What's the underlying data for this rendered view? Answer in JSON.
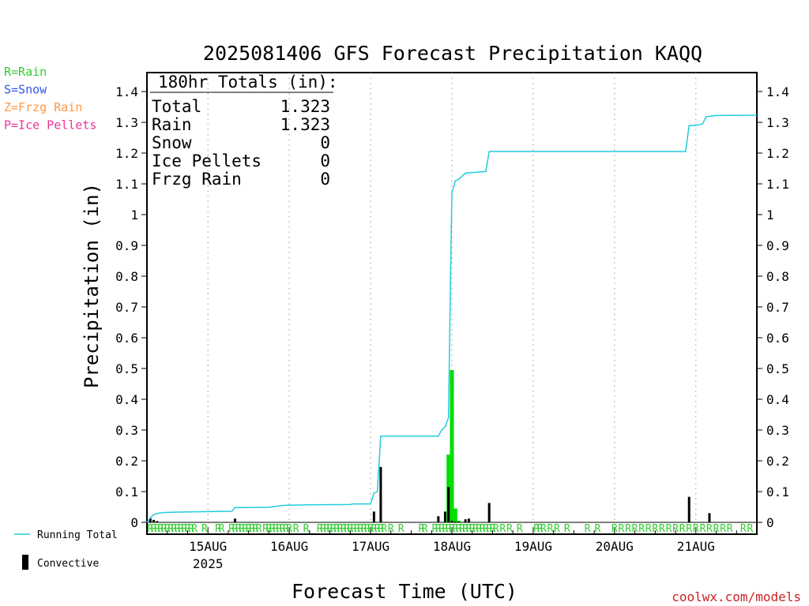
{
  "chart_data": {
    "type": "bar",
    "title": "2025081406 GFS Forecast Precipitation KAQQ",
    "ylabel": "Precipitation (in)",
    "xlabel": "Forecast Time (UTC)",
    "ylim": [
      0,
      1.45
    ],
    "yticks": [
      0,
      0.1,
      0.2,
      0.3,
      0.4,
      0.5,
      0.6,
      0.7,
      0.8,
      0.9,
      1,
      1.1,
      1.2,
      1.3,
      1.4
    ],
    "x_unit": "hours since 2025-08-14 06 UTC",
    "xlim": [
      0,
      180
    ],
    "xticks": [
      {
        "x": 18,
        "label": "15AUG",
        "sub": "2025"
      },
      {
        "x": 42,
        "label": "16AUG",
        "sub": ""
      },
      {
        "x": 66,
        "label": "17AUG",
        "sub": ""
      },
      {
        "x": 90,
        "label": "18AUG",
        "sub": ""
      },
      {
        "x": 114,
        "label": "19AUG",
        "sub": ""
      },
      {
        "x": 138,
        "label": "20AUG",
        "sub": ""
      },
      {
        "x": 162,
        "label": "21AUG",
        "sub": ""
      }
    ],
    "grid": "vertical dotted at day boundaries",
    "precip_type_legend": [
      {
        "text": "R=Rain",
        "color": "#33cc33"
      },
      {
        "text": "S=Snow",
        "color": "#3355ee"
      },
      {
        "text": "Z=Frzg Rain",
        "color": "#ff9944"
      },
      {
        "text": "P=Ice Pellets",
        "color": "#ee3399"
      }
    ],
    "series_legend": {
      "running_total": "Running Total",
      "convective": "Convective"
    },
    "totals": {
      "header": "180hr Totals (in):",
      "rows": [
        {
          "label": "Total",
          "value": "1.323"
        },
        {
          "label": "Rain",
          "value": "1.323"
        },
        {
          "label": "Snow",
          "value": "0"
        },
        {
          "label": "Ice Pellets",
          "value": "0"
        },
        {
          "label": "Frzg Rain",
          "value": "0"
        }
      ]
    },
    "running_total": [
      [
        0,
        0
      ],
      [
        1,
        0.015
      ],
      [
        2,
        0.025
      ],
      [
        3,
        0.029
      ],
      [
        5,
        0.032
      ],
      [
        8,
        0.033
      ],
      [
        12,
        0.034
      ],
      [
        18,
        0.035
      ],
      [
        25,
        0.036
      ],
      [
        26,
        0.048
      ],
      [
        30,
        0.048
      ],
      [
        36,
        0.049
      ],
      [
        38,
        0.052
      ],
      [
        40,
        0.055
      ],
      [
        42,
        0.056
      ],
      [
        48,
        0.057
      ],
      [
        60,
        0.058
      ],
      [
        61,
        0.06
      ],
      [
        66,
        0.06
      ],
      [
        67,
        0.095
      ],
      [
        68,
        0.1
      ],
      [
        69,
        0.28
      ],
      [
        78,
        0.28
      ],
      [
        86,
        0.28
      ],
      [
        87,
        0.3
      ],
      [
        88,
        0.31
      ],
      [
        89,
        0.34
      ],
      [
        89.3,
        0.57
      ],
      [
        89.6,
        0.8
      ],
      [
        90,
        1.07
      ],
      [
        91,
        1.11
      ],
      [
        92,
        1.115
      ],
      [
        93,
        1.125
      ],
      [
        94,
        1.135
      ],
      [
        96,
        1.137
      ],
      [
        100,
        1.14
      ],
      [
        101,
        1.205
      ],
      [
        120,
        1.205
      ],
      [
        140,
        1.205
      ],
      [
        159,
        1.205
      ],
      [
        160,
        1.29
      ],
      [
        162,
        1.29
      ],
      [
        164,
        1.295
      ],
      [
        165,
        1.318
      ],
      [
        168,
        1.322
      ],
      [
        180,
        1.323
      ]
    ],
    "bars": [
      {
        "x": 1,
        "total": 0.013,
        "convective": 0.013
      },
      {
        "x": 2,
        "total": 0.008,
        "convective": 0.008
      },
      {
        "x": 3,
        "total": 0.004,
        "convective": 0.004
      },
      {
        "x": 26,
        "total": 0.012,
        "convective": 0.012
      },
      {
        "x": 67,
        "total": 0.035,
        "convective": 0.035
      },
      {
        "x": 69,
        "total": 0.18,
        "convective": 0.18
      },
      {
        "x": 86,
        "total": 0.02,
        "convective": 0.02
      },
      {
        "x": 88,
        "total": 0.035,
        "convective": 0.035
      },
      {
        "x": 89,
        "total": 0.22,
        "convective": 0.115
      },
      {
        "x": 90,
        "total": 0.495,
        "convective": 0.005
      },
      {
        "x": 91,
        "total": 0.045,
        "convective": 0.003
      },
      {
        "x": 92,
        "total": 0.005,
        "convective": 0.002
      },
      {
        "x": 94,
        "total": 0.01,
        "convective": 0.01
      },
      {
        "x": 95,
        "total": 0.012,
        "convective": 0.012
      },
      {
        "x": 101,
        "total": 0.063,
        "convective": 0.063
      },
      {
        "x": 160,
        "total": 0.083,
        "convective": 0.083
      },
      {
        "x": 166,
        "total": 0.03,
        "convective": 0.03
      }
    ],
    "precip_type_markers": {
      "symbol": "R",
      "x": [
        1,
        2,
        3,
        4,
        5,
        6,
        7,
        8,
        9,
        10,
        11,
        12,
        13,
        14,
        17,
        21,
        22,
        25,
        26,
        27,
        28,
        29,
        30,
        31,
        32,
        33,
        35,
        36,
        37,
        38,
        39,
        40,
        41,
        42,
        44,
        47,
        51,
        52,
        53,
        54,
        55,
        56,
        57,
        58,
        59,
        60,
        61,
        62,
        63,
        64,
        65,
        66,
        67,
        68,
        69,
        70,
        72,
        75,
        81,
        82,
        85,
        86,
        87,
        88,
        89,
        90,
        91,
        92,
        93,
        94,
        95,
        96,
        97,
        98,
        99,
        100,
        101,
        102,
        103,
        105,
        107,
        110,
        115,
        116,
        117,
        119,
        121,
        124,
        130,
        133,
        138,
        140,
        142,
        144,
        146,
        148,
        150,
        152,
        154,
        156,
        158,
        160,
        162,
        164,
        166,
        168,
        170,
        172,
        176,
        178
      ]
    }
  },
  "source_credit": "coolwx.com/models"
}
